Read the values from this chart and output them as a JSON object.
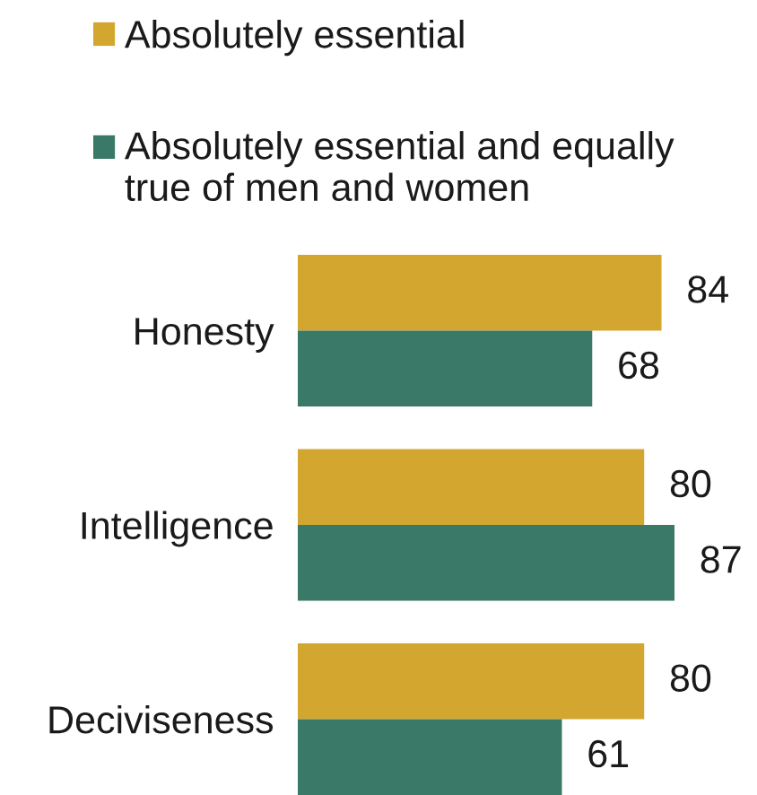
{
  "chart_data": {
    "type": "bar",
    "orientation": "horizontal",
    "categories": [
      "Honesty",
      "Intelligence",
      "Deciviseness"
    ],
    "series": [
      {
        "name": "Absolutely essential",
        "color": "#d3a62f",
        "values": [
          84,
          80,
          80
        ]
      },
      {
        "name": "Absolutely essential and equally\ntrue of men and women",
        "color": "#3a7867",
        "values": [
          68,
          87,
          61
        ]
      }
    ],
    "data_labels": true,
    "legend": "top",
    "tick_labels": "y"
  }
}
